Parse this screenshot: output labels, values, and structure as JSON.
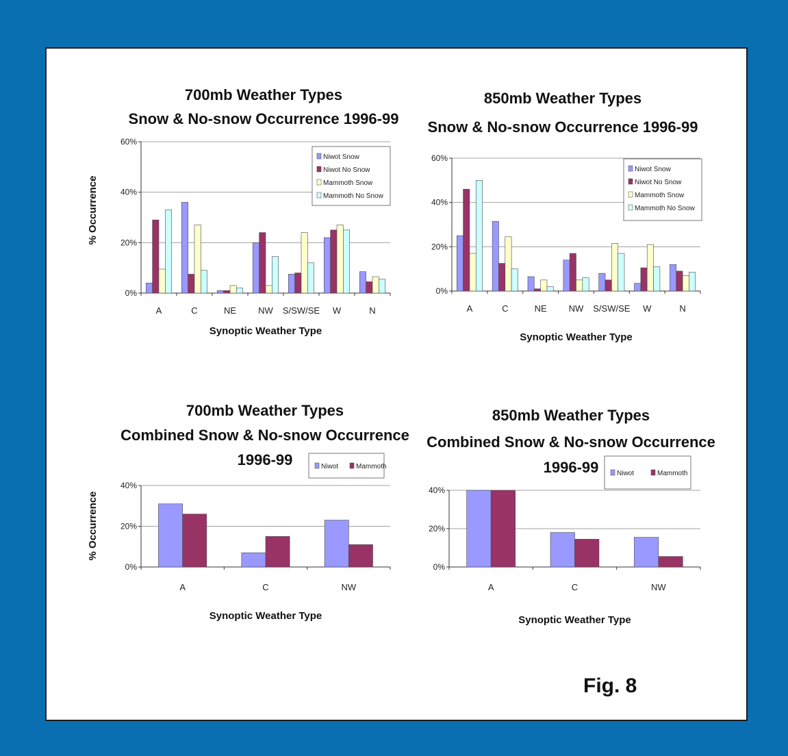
{
  "colors": {
    "frame": "#0a6fb0",
    "panel": "#ffffff",
    "niwot_snow": "#9999ff",
    "niwot_no_snow": "#993366",
    "mammoth_snow": "#ffffcc",
    "mammoth_no_snow": "#ccffff",
    "niwot": "#9999ff",
    "mammoth": "#993366",
    "grid": "#a0a0a0"
  },
  "figure_label": "Fig. 8",
  "chart_data": [
    {
      "id": "c700",
      "type": "bar",
      "title_lines": [
        "700mb Weather Types",
        "Snow & No-snow Occurrence 1996-99"
      ],
      "xlabel": "Synoptic Weather Type",
      "ylabel": "% Occurrence",
      "categories": [
        "A",
        "C",
        "NE",
        "NW",
        "S/SW/SE",
        "W",
        "N"
      ],
      "yticks": [
        "0%",
        "20%",
        "40%",
        "60%"
      ],
      "ylim": [
        0,
        60
      ],
      "grid": true,
      "legend_position": "top-right",
      "series": [
        {
          "name": "Niwot Snow",
          "color": "#9999ff",
          "values": [
            4,
            36,
            1,
            20,
            7.5,
            22,
            8.5
          ]
        },
        {
          "name": "Niwot No Snow",
          "color": "#993366",
          "values": [
            29,
            7.5,
            1,
            24,
            8,
            25,
            4.5
          ]
        },
        {
          "name": "Mammoth Snow",
          "color": "#ffffcc",
          "values": [
            9.5,
            27,
            3,
            3,
            24,
            27,
            6.5
          ]
        },
        {
          "name": "Mammoth No Snow",
          "color": "#ccffff",
          "values": [
            33,
            9,
            2,
            14.5,
            12,
            25,
            5.5
          ]
        }
      ]
    },
    {
      "id": "c850",
      "type": "bar",
      "title_lines": [
        "850mb Weather Types",
        "Snow & No-snow Occurrence 1996-99"
      ],
      "xlabel": "Synoptic Weather Type",
      "ylabel": "",
      "categories": [
        "A",
        "C",
        "NE",
        "NW",
        "S/SW/SE",
        "W",
        "N"
      ],
      "yticks": [
        "0%",
        "20%",
        "40%",
        "60%"
      ],
      "ylim": [
        0,
        60
      ],
      "grid": true,
      "legend_position": "top-right",
      "series": [
        {
          "name": "Niwot Snow",
          "color": "#9999ff",
          "values": [
            25,
            31.5,
            6.5,
            14,
            8,
            3.5,
            12
          ]
        },
        {
          "name": "Niwot No Snow",
          "color": "#993366",
          "values": [
            46,
            12.5,
            1,
            17,
            5,
            10.5,
            9
          ]
        },
        {
          "name": "Mammoth Snow",
          "color": "#ffffcc",
          "values": [
            17,
            24.5,
            5,
            5,
            21.5,
            21,
            7
          ]
        },
        {
          "name": "Mammoth No Snow",
          "color": "#ccffff",
          "values": [
            50,
            10,
            2,
            6,
            17,
            11,
            8.5
          ]
        }
      ]
    },
    {
      "id": "c700comb",
      "type": "bar",
      "title_lines": [
        "700mb Weather Types",
        "Combined Snow & No-snow Occurrence",
        "1996-99"
      ],
      "xlabel": "Synoptic Weather Type",
      "ylabel": "% Occurrence",
      "categories": [
        "A",
        "C",
        "NW"
      ],
      "yticks": [
        "0%",
        "20%",
        "40%"
      ],
      "ylim": [
        0,
        40
      ],
      "grid": true,
      "legend_position": "top-right",
      "series": [
        {
          "name": "Niwot",
          "color": "#9999ff",
          "values": [
            31,
            7,
            23
          ]
        },
        {
          "name": "Mammoth",
          "color": "#993366",
          "values": [
            26,
            15,
            11
          ]
        }
      ]
    },
    {
      "id": "c850comb",
      "type": "bar",
      "title_lines": [
        "850mb Weather Types",
        "Combined Snow & No-snow Occurrence",
        "1996-99"
      ],
      "xlabel": "Synoptic Weather Type",
      "ylabel": "",
      "categories": [
        "A",
        "C",
        "NW"
      ],
      "yticks": [
        "0%",
        "20%",
        "40%"
      ],
      "ylim": [
        0,
        40
      ],
      "grid": true,
      "legend_position": "top-right",
      "series": [
        {
          "name": "Niwot",
          "color": "#9999ff",
          "values": [
            40,
            18,
            15.5
          ]
        },
        {
          "name": "Mammoth",
          "color": "#993366",
          "values": [
            40,
            14.5,
            5.5
          ]
        }
      ]
    }
  ]
}
